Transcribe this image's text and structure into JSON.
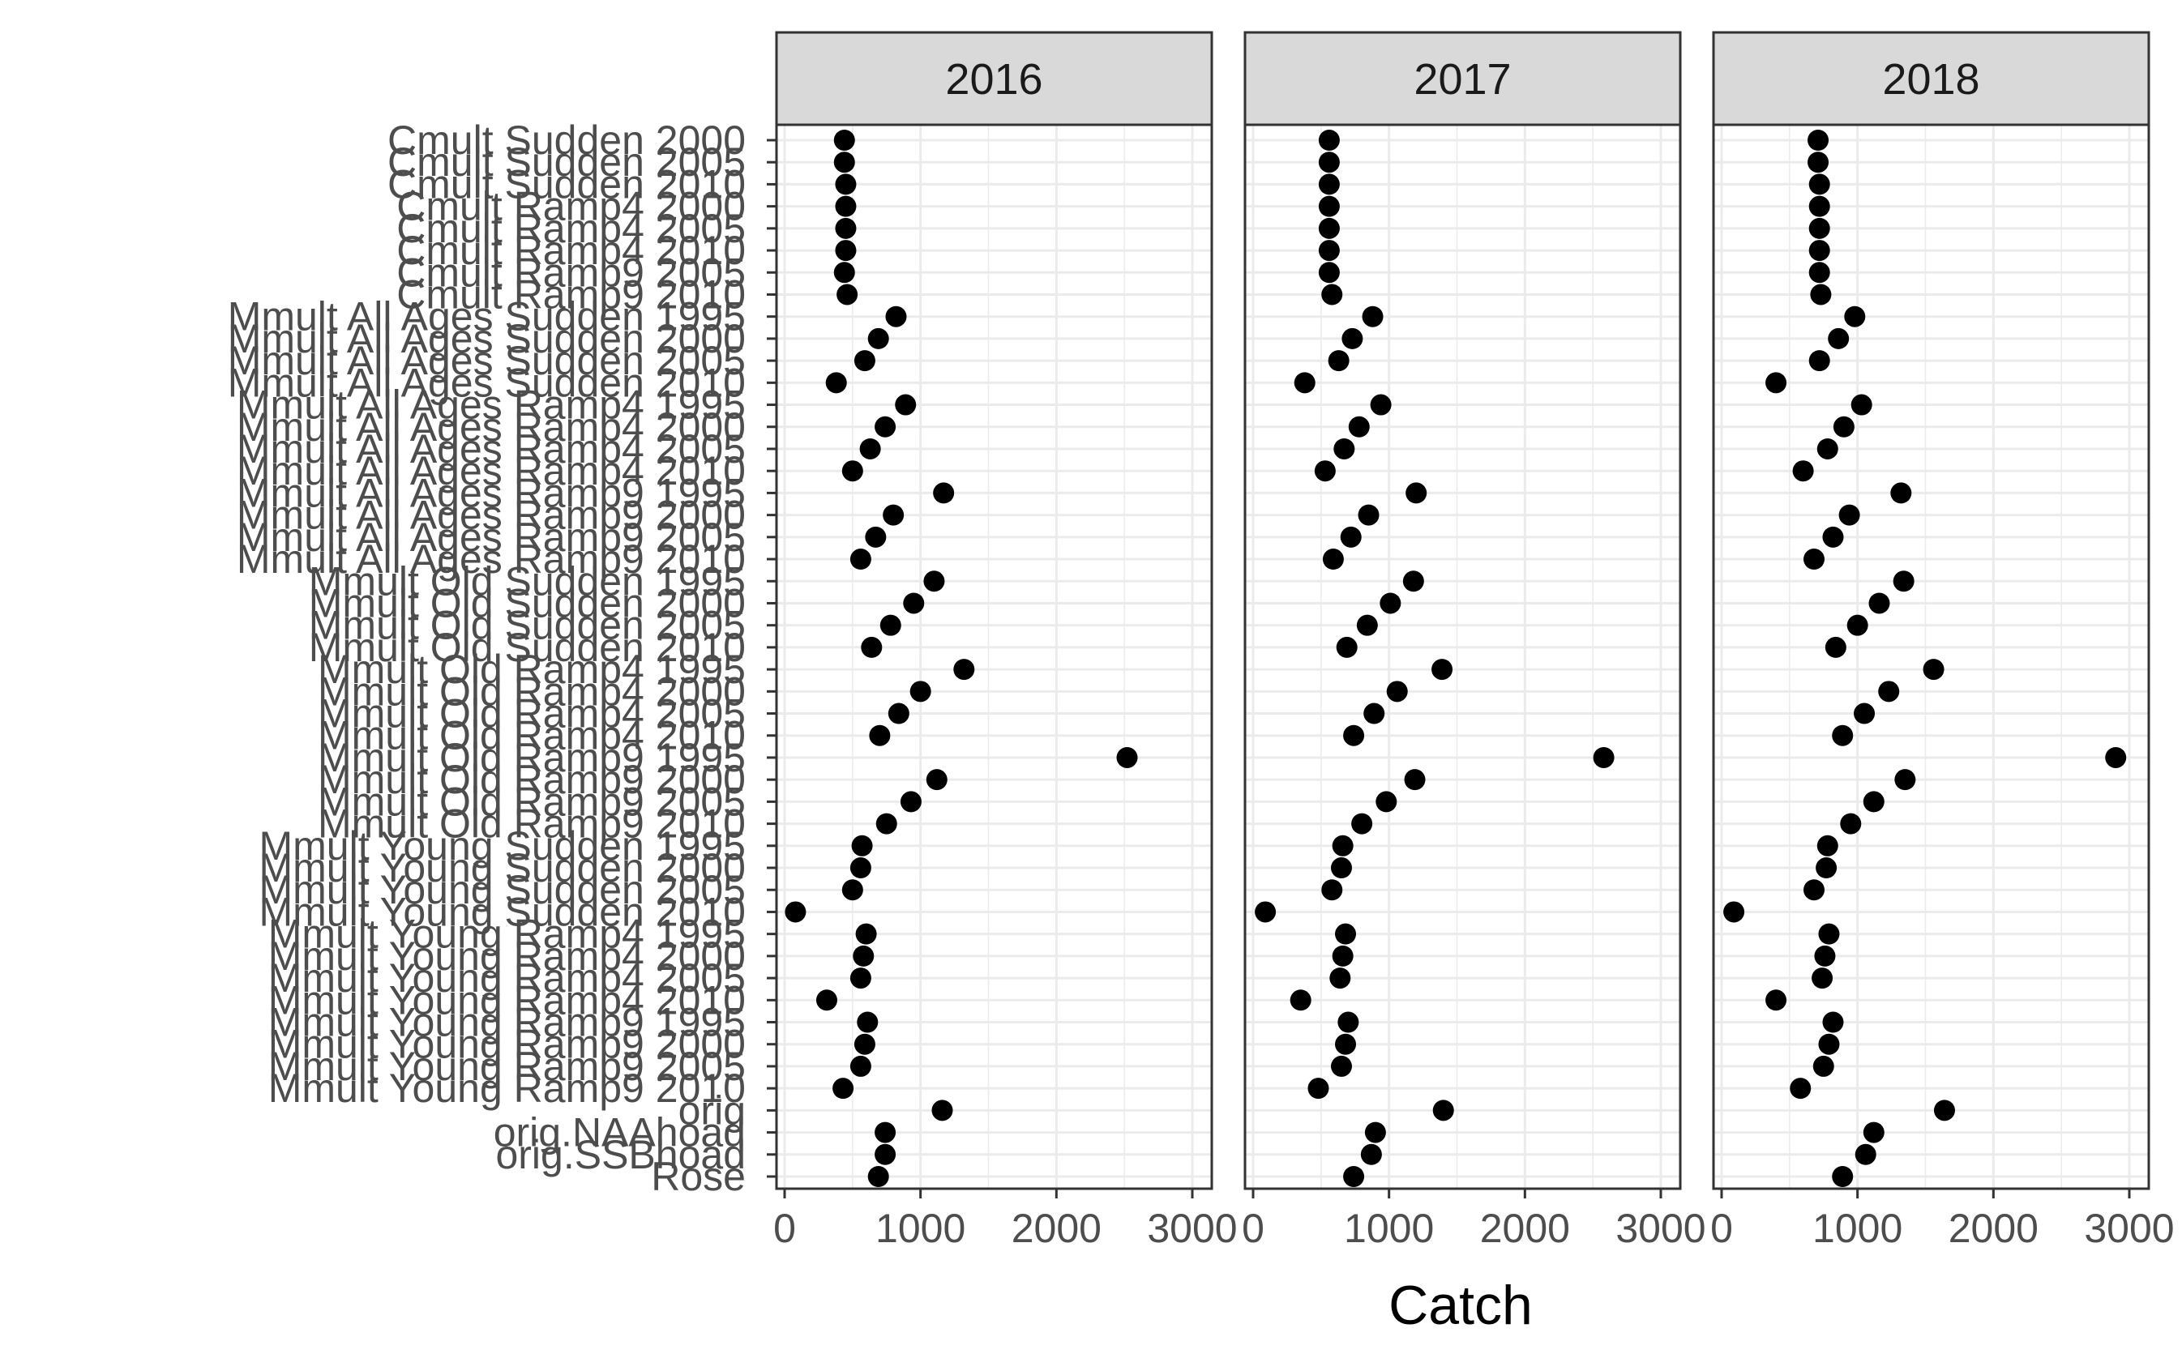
{
  "chart_data": {
    "type": "scatter",
    "title": "",
    "xlabel": "Catch",
    "ylabel": "",
    "xlim": [
      0,
      3000
    ],
    "x_ticks": [
      "0",
      "1000",
      "2000",
      "3000"
    ],
    "grid": true,
    "categories": [
      "Cmult Sudden 2000",
      "Cmult Sudden 2005",
      "Cmult Sudden 2010",
      "Cmult Ramp4 2000",
      "Cmult Ramp4 2005",
      "Cmult Ramp4 2010",
      "Cmult Ramp9 2005",
      "Cmult Ramp9 2010",
      "Mmult All Ages Sudden 1995",
      "Mmult All Ages Sudden 2000",
      "Mmult All Ages Sudden 2005",
      "Mmult All Ages Sudden 2010",
      "Mmult All Ages Ramp4 1995",
      "Mmult All Ages Ramp4 2000",
      "Mmult All Ages Ramp4 2005",
      "Mmult All Ages Ramp4 2010",
      "Mmult All Ages Ramp9 1995",
      "Mmult All Ages Ramp9 2000",
      "Mmult All Ages Ramp9 2005",
      "Mmult All Ages Ramp9 2010",
      "Mmult Old Sudden 1995",
      "Mmult Old Sudden 2000",
      "Mmult Old Sudden 2005",
      "Mmult Old Sudden 2010",
      "Mmult Old Ramp4 1995",
      "Mmult Old Ramp4 2000",
      "Mmult Old Ramp4 2005",
      "Mmult Old Ramp4 2010",
      "Mmult Old Ramp9 1995",
      "Mmult Old Ramp9 2000",
      "Mmult Old Ramp9 2005",
      "Mmult Old Ramp9 2010",
      "Mmult Young Sudden 1995",
      "Mmult Young Sudden 2000",
      "Mmult Young Sudden 2005",
      "Mmult Young Sudden 2010",
      "Mmult Young Ramp4 1995",
      "Mmult Young Ramp4 2000",
      "Mmult Young Ramp4 2005",
      "Mmult Young Ramp4 2010",
      "Mmult Young Ramp9 1995",
      "Mmult Young Ramp9 2000",
      "Mmult Young Ramp9 2005",
      "Mmult Young Ramp9 2010",
      "orig",
      "orig.NAAhoad",
      "orig.SSBhoad",
      "Rose"
    ],
    "panels": [
      {
        "name": "2016",
        "values": [
          440,
          440,
          450,
          450,
          450,
          450,
          440,
          460,
          820,
          690,
          590,
          380,
          890,
          740,
          630,
          500,
          1170,
          800,
          670,
          560,
          1100,
          950,
          780,
          640,
          1320,
          1000,
          840,
          700,
          2520,
          1120,
          930,
          750,
          570,
          560,
          500,
          80,
          600,
          580,
          560,
          310,
          610,
          590,
          560,
          430,
          1160,
          740,
          740,
          690
        ]
      },
      {
        "name": "2017",
        "values": [
          560,
          560,
          560,
          560,
          560,
          560,
          560,
          580,
          880,
          730,
          630,
          380,
          940,
          780,
          670,
          530,
          1200,
          850,
          720,
          590,
          1180,
          1010,
          840,
          690,
          1390,
          1060,
          890,
          740,
          2580,
          1190,
          980,
          800,
          660,
          650,
          580,
          90,
          680,
          660,
          640,
          350,
          700,
          680,
          650,
          480,
          1400,
          900,
          870,
          740
        ]
      },
      {
        "name": "2018",
        "values": [
          710,
          710,
          720,
          720,
          720,
          720,
          720,
          730,
          980,
          860,
          720,
          400,
          1030,
          900,
          780,
          600,
          1320,
          940,
          820,
          680,
          1340,
          1160,
          1000,
          840,
          1560,
          1230,
          1050,
          890,
          2900,
          1350,
          1120,
          950,
          780,
          770,
          680,
          90,
          790,
          760,
          740,
          400,
          820,
          790,
          750,
          580,
          1640,
          1120,
          1060,
          890
        ]
      }
    ]
  }
}
